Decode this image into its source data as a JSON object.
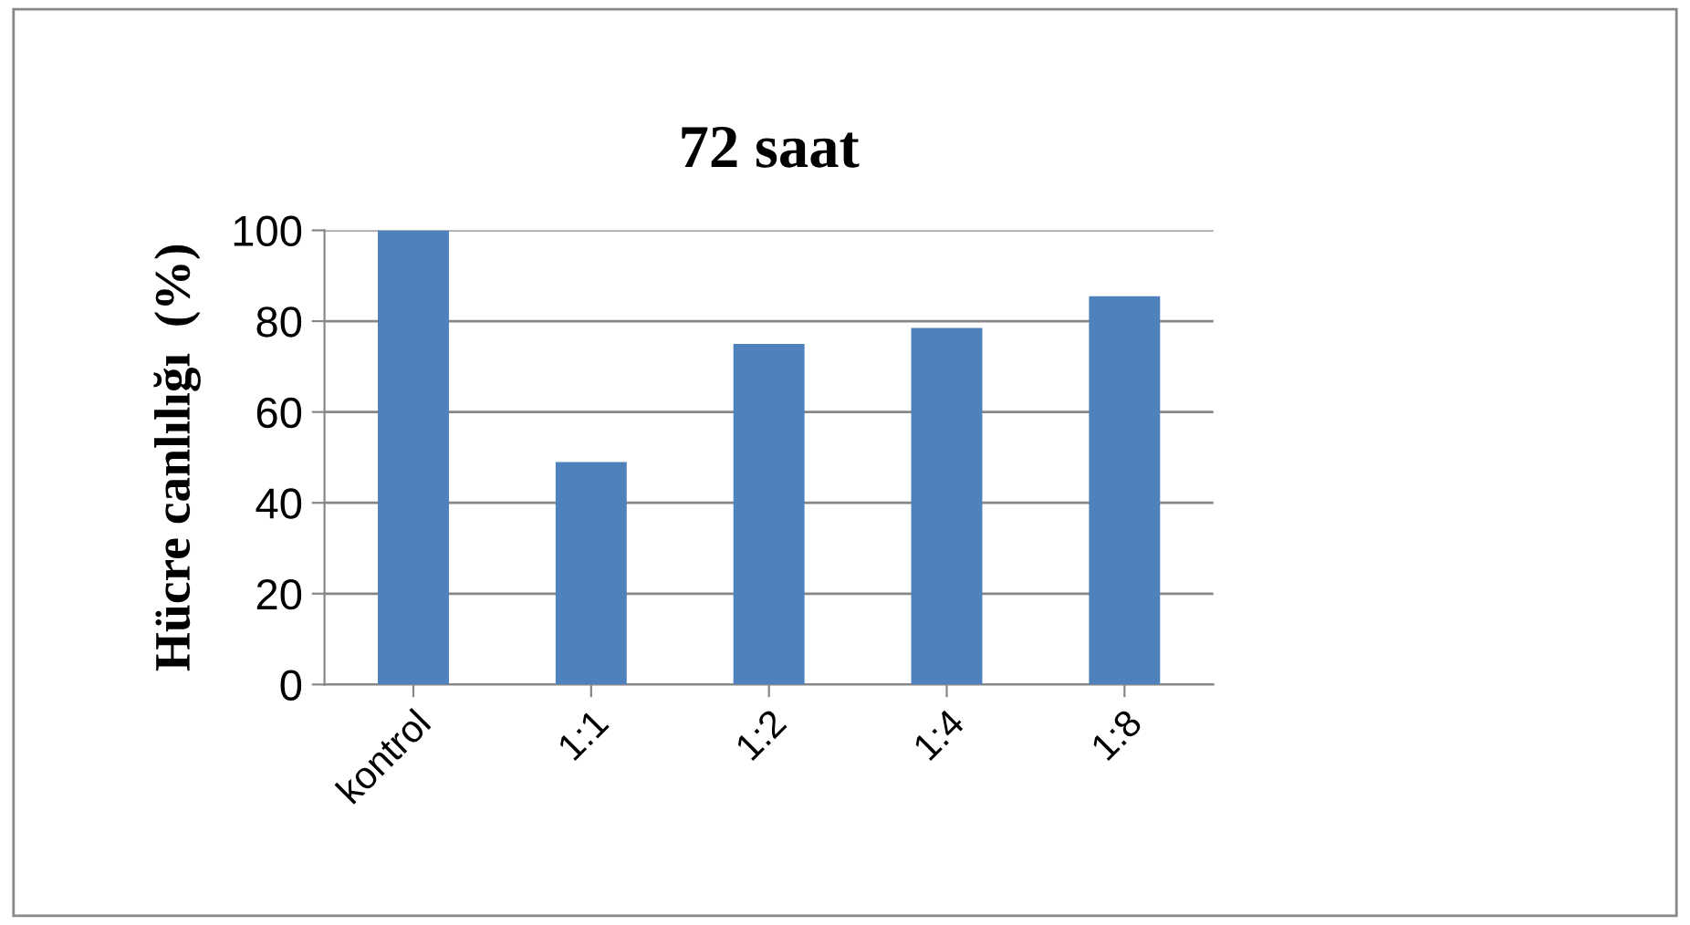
{
  "chart_data": {
    "type": "bar",
    "title": "72 saat",
    "ylabel": "Hücre canlılığı  (%)",
    "categories": [
      "kontrol",
      "1:1",
      "1:2",
      "1:4",
      "1:8"
    ],
    "series": [
      {
        "color": "#4f81bd",
        "values": [
          100,
          49,
          75,
          78.5,
          85.5
        ]
      }
    ],
    "ylim": [
      0,
      100
    ],
    "yticks": [
      0,
      20,
      40,
      60,
      80,
      100
    ],
    "grid": "y"
  }
}
